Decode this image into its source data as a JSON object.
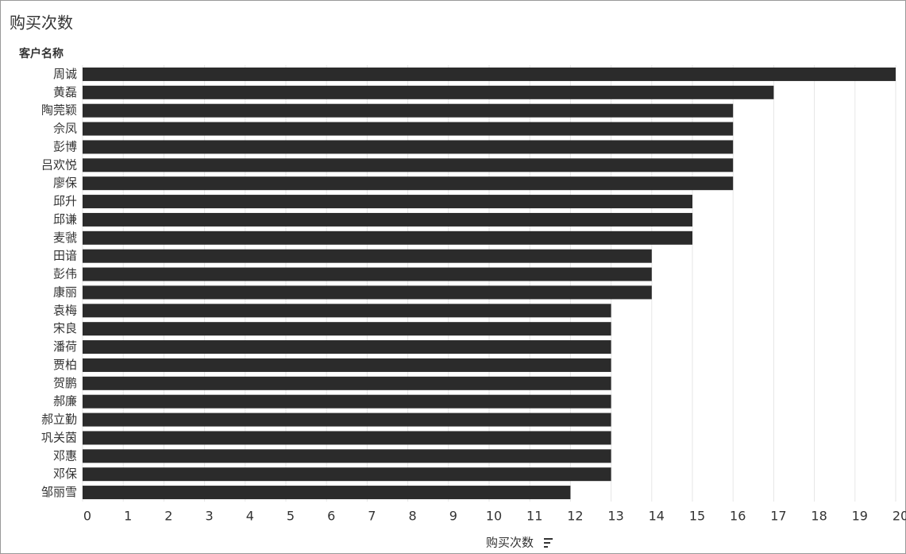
{
  "chart_data": {
    "type": "barh",
    "title": "购买次数",
    "y_label": "客户名称",
    "x_label": "购买次数",
    "categories": [
      "周诚",
      "黄磊",
      "陶莞颖",
      "佘凤",
      "彭博",
      "吕欢悦",
      "廖保",
      "邱升",
      "邱谦",
      "麦虢",
      "田谙",
      "彭伟",
      "康丽",
      "袁梅",
      "宋良",
      "潘荷",
      "贾柏",
      "贺鹏",
      "郝廉",
      "郝立勤",
      "巩关茵",
      "邓惠",
      "邓保",
      "邹丽雪"
    ],
    "values": [
      20,
      17,
      16,
      16,
      16,
      16,
      16,
      15,
      15,
      15,
      14,
      14,
      14,
      13,
      13,
      13,
      13,
      13,
      13,
      13,
      13,
      13,
      13,
      12
    ],
    "color": "#2b2b2b",
    "xlim": [
      0,
      20
    ],
    "xticks": [
      0,
      1,
      2,
      3,
      4,
      5,
      6,
      7,
      8,
      9,
      10,
      11,
      12,
      13,
      14,
      15,
      16,
      17,
      18,
      19,
      20
    ],
    "grid": true
  }
}
